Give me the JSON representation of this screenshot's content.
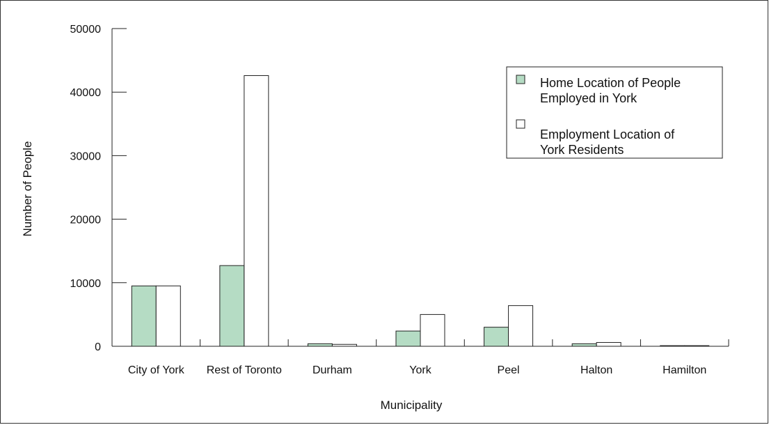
{
  "chart_data": {
    "type": "bar",
    "xlabel": "Municipality",
    "ylabel": "Number of People",
    "ylim": [
      0,
      50000
    ],
    "yticks": [
      0,
      10000,
      20000,
      30000,
      40000,
      50000
    ],
    "categories": [
      "City of York",
      "Rest of Toronto",
      "Durham",
      "York",
      "Peel",
      "Halton",
      "Hamilton"
    ],
    "series": [
      {
        "name": "Home Location of People Employed in York",
        "color": "#b5dcc4",
        "values": [
          9500,
          12700,
          400,
          2400,
          3000,
          400,
          100
        ]
      },
      {
        "name": "Employment Location of York Residents",
        "color": "#ffffff",
        "values": [
          9500,
          42600,
          300,
          5000,
          6400,
          600,
          100
        ]
      }
    ],
    "legend": {
      "position": "top-right",
      "entries": [
        [
          "Home Location of People",
          "Employed in York"
        ],
        [
          "Employment Location of",
          "York Residents"
        ]
      ]
    },
    "grid": false
  }
}
